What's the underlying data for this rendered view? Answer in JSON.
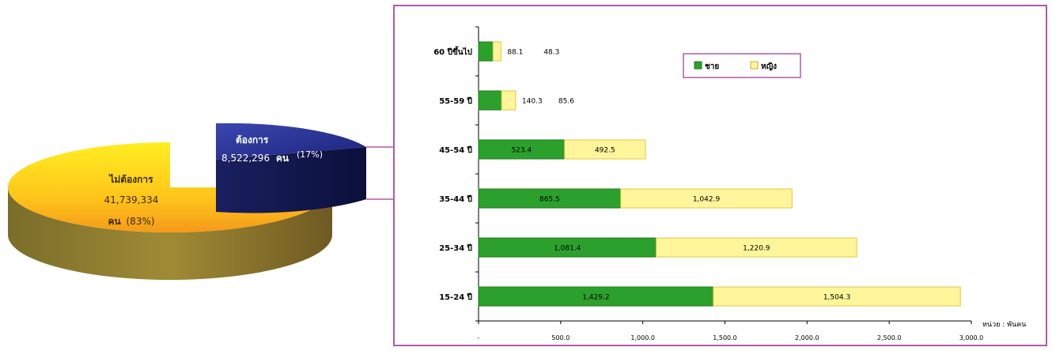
{
  "chart_data": [
    {
      "type": "pie",
      "slices": [
        {
          "label": "ต้องการ",
          "count_text": "8,522,296",
          "unit": "คน",
          "pct_text": "(17%)",
          "value": 17,
          "color": "#1f2a8a"
        },
        {
          "label": "ไม่ต้องการ",
          "count_text": "41,739,334",
          "unit": "คน",
          "pct_text": "(83%)",
          "value": 83,
          "color": "#f7c21a"
        }
      ]
    },
    {
      "type": "bar",
      "orientation": "horizontal",
      "stacked": true,
      "categories": [
        "15-24 ปี",
        "25-34 ปี",
        "35-44 ปี",
        "45-54 ปี",
        "55-59 ปี",
        "60 ปีขึ้นไป"
      ],
      "series": [
        {
          "name": "ชาย",
          "values": [
            1429.2,
            1081.4,
            865.5,
            523.4,
            140.3,
            88.1
          ],
          "labels": [
            "1,429.2",
            "1,081.4",
            "865.5",
            "523.4",
            "140.3",
            "88.1"
          ],
          "color": "#2ca02c"
        },
        {
          "name": "หญิง",
          "values": [
            1504.3,
            1220.9,
            1042.9,
            492.5,
            85.6,
            48.3
          ],
          "labels": [
            "1,504.3",
            "1,220.9",
            "1,042.9",
            "492.5",
            "85.6",
            "48.3"
          ],
          "color": "#fff59a"
        }
      ],
      "xlim": [
        0,
        3000
      ],
      "xticks": [
        "-",
        "500.0",
        "1,000.0",
        "1,500.0",
        "2,000.0",
        "2,500.0",
        "3,000.0"
      ],
      "unit_label": "หน่วย : พันคน",
      "legend_position": "top-right",
      "grid": false
    }
  ]
}
